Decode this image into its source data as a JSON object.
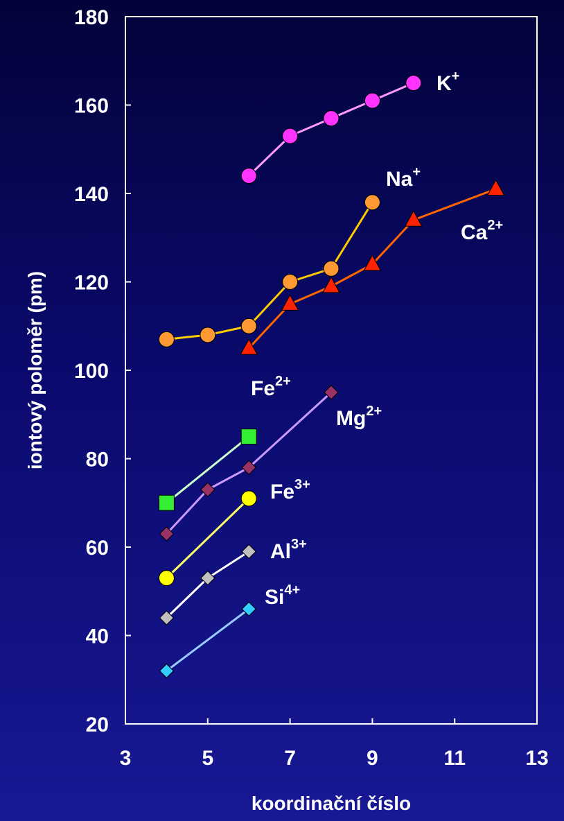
{
  "chart_data": {
    "type": "line",
    "xlabel": "koordinační číslo",
    "ylabel": "iontový poloměr (pm)",
    "xlim": [
      3,
      13
    ],
    "ylim": [
      20,
      180
    ],
    "xticks": [
      3,
      5,
      7,
      9,
      11,
      13
    ],
    "yticks": [
      20,
      40,
      60,
      80,
      100,
      120,
      140,
      160,
      180
    ],
    "grid": false,
    "legend": "none (direct labels)",
    "series": [
      {
        "name": "K",
        "charge": "+",
        "color": "#ff33ff",
        "line_color": "#ff99ff",
        "marker": "circle",
        "x": [
          6,
          7,
          8,
          9,
          10
        ],
        "y": [
          144,
          153,
          157,
          161,
          165
        ]
      },
      {
        "name": "Na",
        "charge": "+",
        "color": "#ff9933",
        "line_color": "#ffcc00",
        "marker": "circle",
        "x": [
          4,
          5,
          6,
          7,
          8,
          9
        ],
        "y": [
          107,
          108,
          110,
          120,
          123,
          138
        ]
      },
      {
        "name": "Ca",
        "charge": "2+",
        "color": "#ff2200",
        "line_color": "#ff6600",
        "marker": "triangle",
        "x": [
          6,
          7,
          8,
          9,
          10,
          12
        ],
        "y": [
          105,
          115,
          119,
          124,
          134,
          141
        ]
      },
      {
        "name": "Fe",
        "charge": "2+",
        "color": "#33ee33",
        "line_color": "#ccffcc",
        "marker": "square",
        "x": [
          4,
          6
        ],
        "y": [
          70,
          85
        ]
      },
      {
        "name": "Mg",
        "charge": "2+",
        "color": "#993366",
        "line_color": "#cc99ff",
        "marker": "diamond",
        "x": [
          4,
          5,
          6,
          8
        ],
        "y": [
          63,
          73,
          78,
          95
        ]
      },
      {
        "name": "Fe",
        "charge": "3+",
        "color": "#ffff00",
        "line_color": "#ffff66",
        "marker": "circle",
        "x": [
          4,
          6
        ],
        "y": [
          53,
          71
        ]
      },
      {
        "name": "Al",
        "charge": "3+",
        "color": "#c0c0c0",
        "line_color": "#ffffff",
        "marker": "diamond",
        "x": [
          4,
          5,
          6
        ],
        "y": [
          44,
          53,
          59
        ]
      },
      {
        "name": "Si",
        "charge": "4+",
        "color": "#33ccff",
        "line_color": "#99ccff",
        "marker": "diamond",
        "x": [
          4,
          6
        ],
        "y": [
          32,
          46
        ]
      }
    ]
  }
}
